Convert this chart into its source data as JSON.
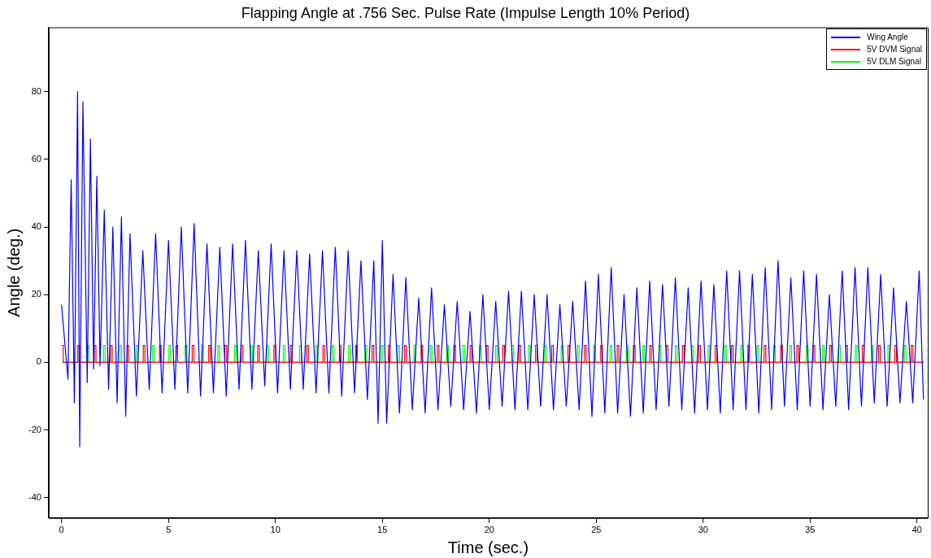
{
  "chart_data": {
    "type": "line",
    "title": "Flapping Angle at .756 Sec. Pulse Rate (Impulse Length 10% Period)",
    "xlabel": "Time (sec.)",
    "ylabel": "Angle (deg.)",
    "xlim": [
      -0.6,
      40.5
    ],
    "ylim": [
      -46,
      99
    ],
    "xticks": [
      0,
      5,
      10,
      15,
      20,
      25,
      30,
      35,
      40
    ],
    "yticks": [
      -40,
      -20,
      0,
      20,
      40,
      60,
      80
    ],
    "grid": false,
    "legend": "top right",
    "marker": "none",
    "series": [
      {
        "name": "Wing Angle",
        "color": "#0000ff",
        "type": "line",
        "x": [
          0,
          0.3,
          0.45,
          0.6,
          0.75,
          0.85,
          1.0,
          1.2,
          1.35,
          1.5,
          1.65,
          1.8,
          2.0,
          2.2,
          2.4,
          2.6,
          2.8,
          3.0,
          3.2,
          3.5,
          3.8,
          4.1,
          4.4,
          4.7,
          5.0,
          5.3,
          5.6,
          5.9,
          6.2,
          6.5,
          6.8,
          7.1,
          7.4,
          7.7,
          8.0,
          8.3,
          8.6,
          8.9,
          9.2,
          9.5,
          9.8,
          10.1,
          10.4,
          10.7,
          11.0,
          11.3,
          11.6,
          11.9,
          12.2,
          12.5,
          12.8,
          13.1,
          13.4,
          13.7,
          14.0,
          14.3,
          14.6,
          14.8,
          15.0,
          15.2,
          15.5,
          15.8,
          16.1,
          16.4,
          16.7,
          17.0,
          17.3,
          17.6,
          17.9,
          18.2,
          18.5,
          18.8,
          19.1,
          19.4,
          19.7,
          20.0,
          20.3,
          20.6,
          20.9,
          21.2,
          21.5,
          21.8,
          22.1,
          22.4,
          22.7,
          23.0,
          23.3,
          23.6,
          23.9,
          24.2,
          24.5,
          24.8,
          25.1,
          25.4,
          25.7,
          26.0,
          26.3,
          26.6,
          26.9,
          27.2,
          27.5,
          27.8,
          28.1,
          28.4,
          28.7,
          29.0,
          29.3,
          29.6,
          29.9,
          30.2,
          30.5,
          30.8,
          31.1,
          31.4,
          31.7,
          32.0,
          32.3,
          32.6,
          32.9,
          33.2,
          33.5,
          33.8,
          34.1,
          34.4,
          34.7,
          35.0,
          35.3,
          35.6,
          35.9,
          36.2,
          36.5,
          36.8,
          37.1,
          37.4,
          37.7,
          38.0,
          38.3,
          38.6,
          38.9,
          39.2,
          39.5,
          39.8,
          40.1,
          40.3
        ],
        "values": [
          17,
          -5,
          54,
          -12,
          80,
          -25,
          77,
          -6,
          66,
          -2,
          55,
          -1,
          45,
          -8,
          40,
          -12,
          43,
          -16,
          38,
          -10,
          33,
          -8,
          38,
          -9,
          36,
          -8,
          40,
          -9,
          41,
          -10,
          35,
          -9,
          34,
          -10,
          35,
          -8,
          36,
          -8,
          33,
          -7,
          35,
          -9,
          33,
          -8,
          33,
          -8,
          32,
          -9,
          33,
          -9,
          34,
          -10,
          33,
          -9,
          30,
          -11,
          30,
          -18,
          36,
          -18,
          26,
          -15,
          25,
          -14,
          19,
          -15,
          22,
          -14,
          17,
          -13,
          18,
          -14,
          15,
          -15,
          20,
          -14,
          18,
          -13,
          21,
          -14,
          21,
          -14,
          20,
          -13,
          20,
          -14,
          17,
          -13,
          18,
          -14,
          24,
          -16,
          26,
          -15,
          28,
          -15,
          20,
          -16,
          22,
          -15,
          24,
          -14,
          23,
          -13,
          25,
          -14,
          22,
          -15,
          24,
          -14,
          23,
          -15,
          27,
          -14,
          27,
          -14,
          26,
          -15,
          28,
          -14,
          30,
          -13,
          25,
          -14,
          27,
          -13,
          26,
          -14,
          20,
          -13,
          27,
          -14,
          28,
          -13,
          28,
          -12,
          26,
          -13,
          22,
          -12,
          18,
          -12,
          27,
          -11
        ]
      },
      {
        "name": "5V DVM Signal",
        "color": "#ff0000",
        "type": "step",
        "x": [
          0,
          0.08,
          0.76,
          0.84,
          1.53,
          1.61,
          2.29,
          2.37,
          3.06,
          3.14,
          3.82,
          3.9,
          4.58,
          4.66,
          5.35,
          5.43,
          6.11,
          6.19,
          6.88,
          6.96,
          7.64,
          7.72,
          8.4,
          8.48,
          9.17,
          9.25,
          9.93,
          10.01,
          10.7,
          10.78,
          11.46,
          11.54,
          12.22,
          12.3,
          12.99,
          13.07,
          13.75,
          13.83,
          14.52,
          14.6,
          15.28,
          15.36,
          16.04,
          16.12,
          16.81,
          16.89,
          17.57,
          17.65,
          18.34,
          18.42,
          19.1,
          19.18,
          19.86,
          19.94,
          20.63,
          20.71,
          21.39,
          21.47,
          22.16,
          22.24,
          22.92,
          23,
          23.68,
          23.76,
          24.45,
          24.53,
          25.21,
          25.29,
          25.98,
          26.06,
          26.74,
          26.82,
          27.5,
          27.58,
          28.27,
          28.35,
          29.03,
          29.11,
          29.8,
          29.88,
          30.56,
          30.64,
          31.32,
          31.4,
          32.09,
          32.17,
          32.85,
          32.93,
          33.62,
          33.7,
          34.38,
          34.46,
          35.14,
          35.22,
          35.91,
          35.99,
          36.67,
          36.75,
          37.44,
          37.52,
          38.2,
          38.28,
          38.96,
          39.04,
          39.73,
          39.81,
          40.3
        ],
        "values": [
          5,
          0,
          5,
          0,
          5,
          0,
          5,
          0,
          5,
          0,
          5,
          0,
          5,
          0,
          5,
          0,
          5,
          0,
          5,
          0,
          5,
          0,
          5,
          0,
          5,
          0,
          5,
          0,
          5,
          0,
          5,
          0,
          5,
          0,
          5,
          0,
          5,
          0,
          5,
          0,
          5,
          0,
          5,
          0,
          5,
          0,
          5,
          0,
          5,
          0,
          5,
          0,
          5,
          0,
          5,
          0,
          5,
          0,
          5,
          0,
          5,
          0,
          5,
          0,
          5,
          0,
          5,
          0,
          5,
          0,
          5,
          0,
          5,
          0,
          5,
          0,
          5,
          0,
          5,
          0,
          5,
          0,
          5,
          0,
          5,
          0,
          5,
          0,
          5,
          0,
          5,
          0,
          5,
          0,
          5,
          0,
          5,
          0,
          5,
          0,
          5,
          0,
          5,
          0,
          5,
          0,
          0
        ]
      },
      {
        "name": "5V DLM Signal",
        "color": "#00ff00",
        "type": "step",
        "x": [
          0,
          1.2,
          1.28,
          1.96,
          2.04,
          2.73,
          2.81,
          3.49,
          3.57,
          4.26,
          4.34,
          5.02,
          5.1,
          5.78,
          5.86,
          6.55,
          6.63,
          7.31,
          7.39,
          8.08,
          8.16,
          8.84,
          8.92,
          9.6,
          9.68,
          10.37,
          10.45,
          11.13,
          11.21,
          11.9,
          11.98,
          12.66,
          12.74,
          13.42,
          13.5,
          14.19,
          14.27,
          14.95,
          15.03,
          15.72,
          15.8,
          16.48,
          16.56,
          17.24,
          17.32,
          18.01,
          18.09,
          18.77,
          18.85,
          19.54,
          19.62,
          20.3,
          20.38,
          21.06,
          21.14,
          21.83,
          21.91,
          22.59,
          22.67,
          23.36,
          23.44,
          24.12,
          24.2,
          24.88,
          24.96,
          25.65,
          25.73,
          26.41,
          26.49,
          27.18,
          27.26,
          27.94,
          28.02,
          28.7,
          28.78,
          29.47,
          29.55,
          30.23,
          30.31,
          31,
          31.08,
          31.76,
          31.84,
          32.52,
          32.6,
          33.29,
          33.37,
          34.05,
          34.13,
          34.82,
          34.9,
          35.58,
          35.66,
          36.34,
          36.42,
          37.11,
          37.19,
          37.87,
          37.95,
          38.64,
          38.72,
          39.4,
          39.48,
          40.3
        ],
        "values": [
          0,
          5,
          0,
          5,
          0,
          5,
          0,
          5,
          0,
          5,
          0,
          5,
          0,
          5,
          0,
          5,
          0,
          5,
          0,
          5,
          0,
          5,
          0,
          5,
          0,
          5,
          0,
          5,
          0,
          5,
          0,
          5,
          0,
          5,
          0,
          5,
          0,
          5,
          0,
          5,
          0,
          5,
          0,
          5,
          0,
          5,
          0,
          5,
          0,
          5,
          0,
          5,
          0,
          5,
          0,
          5,
          0,
          5,
          0,
          5,
          0,
          5,
          0,
          5,
          0,
          5,
          0,
          5,
          0,
          5,
          0,
          5,
          0,
          5,
          0,
          5,
          0,
          5,
          0,
          5,
          0,
          5,
          0,
          5,
          0,
          5,
          0,
          5,
          0,
          5,
          0,
          5,
          0,
          5,
          0,
          5,
          0,
          5,
          0,
          5,
          0,
          5,
          0,
          0
        ]
      }
    ]
  }
}
